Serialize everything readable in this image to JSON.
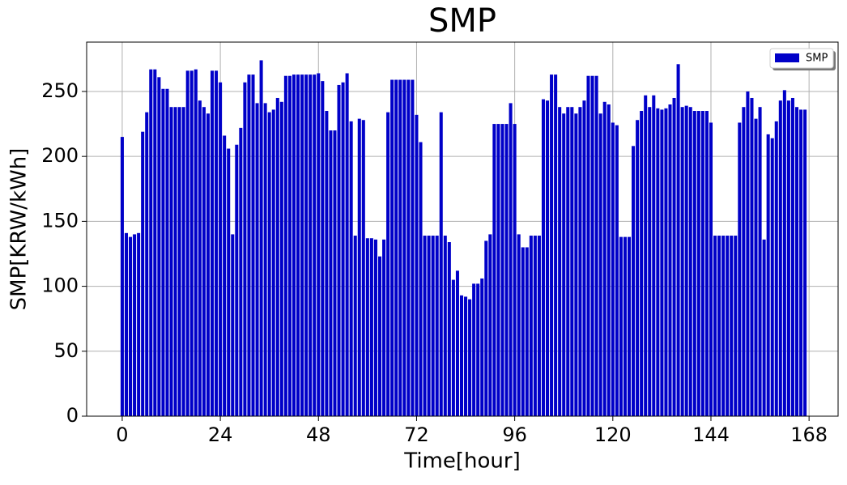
{
  "chart_data": {
    "type": "bar",
    "title": "SMP",
    "x_label": "Time[hour]",
    "y_label": "SMP[KRW/kWh]",
    "x": [
      0,
      1,
      2,
      3,
      4,
      5,
      6,
      7,
      8,
      9,
      10,
      11,
      12,
      13,
      14,
      15,
      16,
      17,
      18,
      19,
      20,
      21,
      22,
      23,
      24,
      25,
      26,
      27,
      28,
      29,
      30,
      31,
      32,
      33,
      34,
      35,
      36,
      37,
      38,
      39,
      40,
      41,
      42,
      43,
      44,
      45,
      46,
      47,
      48,
      49,
      50,
      51,
      52,
      53,
      54,
      55,
      56,
      57,
      58,
      59,
      60,
      61,
      62,
      63,
      64,
      65,
      66,
      67,
      68,
      69,
      70,
      71,
      72,
      73,
      74,
      75,
      76,
      77,
      78,
      79,
      80,
      81,
      82,
      83,
      84,
      85,
      86,
      87,
      88,
      89,
      90,
      91,
      92,
      93,
      94,
      95,
      96,
      97,
      98,
      99,
      100,
      101,
      102,
      103,
      104,
      105,
      106,
      107,
      108,
      109,
      110,
      111,
      112,
      113,
      114,
      115,
      116,
      117,
      118,
      119,
      120,
      121,
      122,
      123,
      124,
      125,
      126,
      127,
      128,
      129,
      130,
      131,
      132,
      133,
      134,
      135,
      136,
      137,
      138,
      139,
      140,
      141,
      142,
      143,
      144,
      145,
      146,
      147,
      148,
      149,
      150,
      151,
      152,
      153,
      154,
      155,
      156,
      157,
      158,
      159,
      160,
      161,
      162,
      163,
      164,
      165,
      166,
      167
    ],
    "series": [
      {
        "name": "SMP",
        "color": "#0000c8",
        "values": [
          215,
          141,
          138,
          140,
          141,
          219,
          234,
          267,
          267,
          261,
          252,
          252,
          238,
          238,
          238,
          238,
          266,
          266,
          267,
          243,
          238,
          233,
          266,
          266,
          257,
          216,
          206,
          140,
          209,
          222,
          257,
          263,
          263,
          241,
          274,
          241,
          234,
          236,
          245,
          242,
          262,
          262,
          263,
          263,
          263,
          263,
          263,
          263,
          264,
          258,
          235,
          220,
          220,
          255,
          257,
          264,
          227,
          139,
          229,
          228,
          137,
          137,
          136,
          123,
          136,
          234,
          259,
          259,
          259,
          259,
          259,
          259,
          232,
          211,
          139,
          139,
          139,
          139,
          234,
          139,
          134,
          105,
          112,
          93,
          92,
          90,
          102,
          102,
          106,
          135,
          140,
          225,
          225,
          225,
          225,
          241,
          225,
          140,
          130,
          130,
          139,
          139,
          139,
          244,
          243,
          263,
          263,
          238,
          233,
          238,
          238,
          233,
          238,
          243,
          262,
          262,
          262,
          233,
          242,
          240,
          226,
          224,
          138,
          138,
          138,
          208,
          228,
          235,
          247,
          238,
          247,
          237,
          236,
          237,
          240,
          245,
          271,
          238,
          239,
          238,
          235,
          235,
          235,
          235,
          226,
          139,
          139,
          139,
          139,
          139,
          139,
          226,
          238,
          250,
          245,
          229,
          238,
          136,
          217,
          214,
          227,
          243,
          251,
          243,
          245,
          238,
          236,
          236
        ]
      }
    ],
    "xlim": [
      -8.7,
      175.1
    ],
    "ylim": [
      0,
      288
    ],
    "xticks": [
      0,
      24,
      48,
      72,
      96,
      120,
      144,
      168
    ],
    "yticks": [
      0,
      50,
      100,
      150,
      200,
      250
    ],
    "grid": true,
    "legend": "upper right"
  }
}
